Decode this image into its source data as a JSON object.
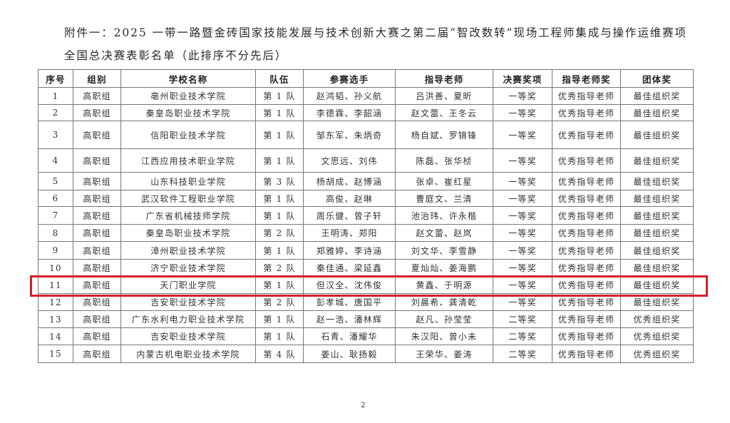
{
  "title_line1": "附件一：2025 一带一路暨金砖国家技能发展与技术创新大赛之第二届“智改数转”现场工程师集成与操作运维赛项",
  "title_line2": "全国总决赛表彰名单（此排序不分先后）",
  "highlight_color": "#d4202a",
  "table": {
    "headers": [
      "序号",
      "组别",
      "学校名称",
      "队伍",
      "参赛选手",
      "指导老师",
      "决赛奖项",
      "指导老师奖",
      "团体奖"
    ],
    "rows": [
      [
        "1",
        "高职组",
        "亳州职业技术学院",
        "第 1 队",
        "赵鸿韬、孙义航",
        "吕洪善、夏昕",
        "一等奖",
        "优秀指导老师",
        "最佳组织奖"
      ],
      [
        "2",
        "高职组",
        "秦皇岛职业技术学院",
        "第 1 队",
        "李德霖、李韶涵",
        "赵文蕾、王冬云",
        "一等奖",
        "优秀指导老师",
        "最佳组织奖"
      ],
      [
        "3",
        "高职组",
        "信阳职业技术学院",
        "第 1 队",
        "邹东军、朱炳奇",
        "杨自斌、罗锦锋",
        "一等奖",
        "优秀指导老师",
        "最佳组织奖"
      ],
      [
        "4",
        "高职组",
        "江西应用技术职业学院",
        "第 1 队",
        "文思远、刘伟",
        "陈磊、张华桢",
        "一等奖",
        "优秀指导老师",
        "最佳组织奖"
      ],
      [
        "5",
        "高职组",
        "山东科技职业学院",
        "第 3 队",
        "杨胡成、赵博涵",
        "张卓、崔红星",
        "一等奖",
        "优秀指导老师",
        "最佳组织奖"
      ],
      [
        "6",
        "高职组",
        "武汉软件工程职业学院",
        "第 1 队",
        "高俊、赵琳",
        "曹庭文、兰清",
        "一等奖",
        "优秀指导老师",
        "最佳组织奖"
      ],
      [
        "7",
        "高职组",
        "广东省机械技师学院",
        "第 1 队",
        "周乐健、曾子轩",
        "池治玮、许永楷",
        "一等奖",
        "优秀指导老师",
        "最佳组织奖"
      ],
      [
        "8",
        "高职组",
        "秦皇岛职业技术学院",
        "第 2 队",
        "王明涛、郑阳",
        "赵文蕾、赵岚",
        "一等奖",
        "优秀指导老师",
        "最佳组织奖"
      ],
      [
        "9",
        "高职组",
        "漳州职业技术学院",
        "第 1 队",
        "郑雅婷、李诗涵",
        "刘文华、李雪静",
        "一等奖",
        "优秀指导老师",
        "最佳组织奖"
      ],
      [
        "10",
        "高职组",
        "济宁职业技术学院",
        "第 2 队",
        "秦佳通、梁延鑫",
        "夏灿灿、姜海鹏",
        "一等奖",
        "优秀指导老师",
        "最佳组织奖"
      ],
      [
        "11",
        "高职组",
        "天门职业学院",
        "第 1 队",
        "但汉全、沈伟俊",
        "黄鑫、于明源",
        "一等奖",
        "优秀指导老师",
        "最佳组织奖"
      ],
      [
        "12",
        "高职组",
        "吉安职业技术学院",
        "第 2 队",
        "彭孝城、唐国平",
        "刘晨希、龚清乾",
        "一等奖",
        "优秀指导老师",
        "最佳组织奖"
      ],
      [
        "13",
        "高职组",
        "广东水利电力职业技术学院",
        "第 1 队",
        "赵一浩、潘林辉",
        "赵凡、孙莹莹",
        "二等奖",
        "优秀指导老师",
        "优秀组织奖"
      ],
      [
        "14",
        "高职组",
        "吉安职业技术学院",
        "第 1 队",
        "石青、潘耀华",
        "朱汉阳、曾小未",
        "二等奖",
        "优秀指导老师",
        "优秀组织奖"
      ],
      [
        "15",
        "高职组",
        "内蒙古机电职业技术学院",
        "第 4 队",
        "姜山、耿扬毅",
        "王荣华、姜涛",
        "二等奖",
        "优秀指导老师",
        "优秀组织奖"
      ]
    ]
  },
  "page_number": "2"
}
